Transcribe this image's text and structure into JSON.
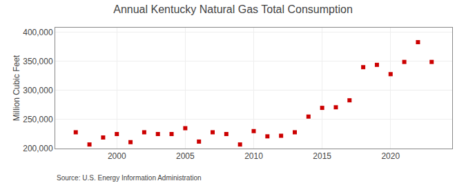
{
  "chart_data": {
    "type": "scatter",
    "title": "Annual Kentucky Natural Gas Total Consumption",
    "ylabel": "Million Cubic Feet",
    "annotations": [
      "Source: U.S. Energy Information Administration"
    ],
    "x": [
      1997,
      1998,
      1999,
      2000,
      2001,
      2002,
      2003,
      2004,
      2005,
      2006,
      2007,
      2008,
      2009,
      2010,
      2011,
      2012,
      2013,
      2014,
      2015,
      2016,
      2017,
      2018,
      2019,
      2020,
      2021,
      2022,
      2023
    ],
    "values": [
      228000,
      207000,
      219000,
      225000,
      211000,
      228000,
      225000,
      225000,
      235000,
      212000,
      228000,
      225000,
      207000,
      230000,
      221000,
      222000,
      228000,
      255000,
      270000,
      271000,
      283000,
      340000,
      344000,
      328000,
      349000,
      383000,
      349000
    ],
    "color": "#cc0000",
    "marker": "square",
    "xlim": [
      1995.5,
      2024.5
    ],
    "ylim": [
      200000,
      408000
    ],
    "xticks": [
      2000,
      2005,
      2010,
      2015,
      2020
    ],
    "yticks": [
      {
        "value": 200000,
        "label": "200,000"
      },
      {
        "value": 250000,
        "label": "250,000"
      },
      {
        "value": 300000,
        "label": "300,000"
      },
      {
        "value": 350000,
        "label": "350,000"
      },
      {
        "value": 400000,
        "label": "400,000"
      }
    ],
    "grid": true
  }
}
